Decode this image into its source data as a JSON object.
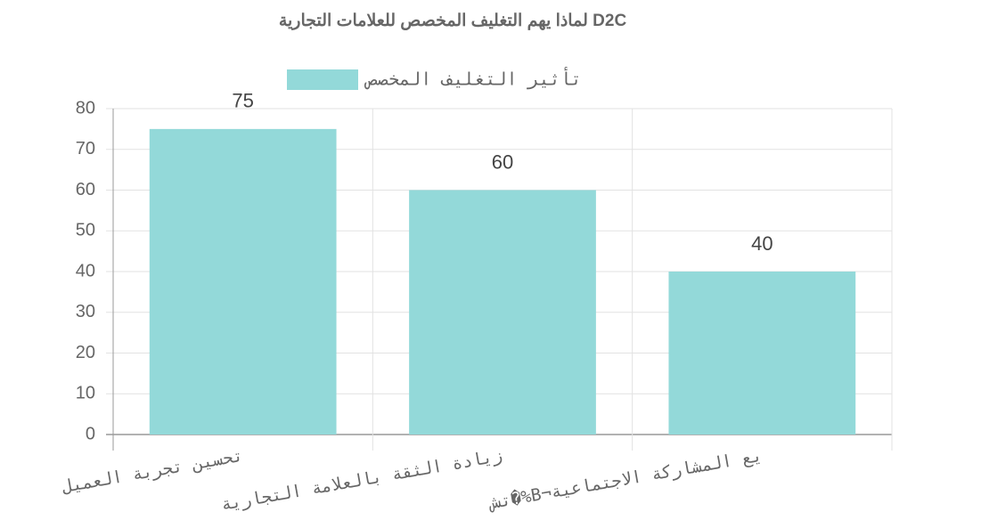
{
  "chart_data": {
    "type": "bar",
    "title": "لماذا يهم التغليف المخصص للعلامات التجارية D2C",
    "categories": [
      "تحسين تجربة العميل",
      "زيادة الثقة بالعلامة التجارية",
      "تش�%B¬يع المشاركة الاجتماعية"
    ],
    "series": [
      {
        "name": "تأثير التغليف المخصص",
        "color": "#93d9d9",
        "values": [
          75,
          60,
          40
        ]
      }
    ],
    "ylim": [
      0,
      80
    ],
    "yticks": [
      0,
      10,
      20,
      30,
      40,
      50,
      60,
      70,
      80
    ],
    "grid": true
  }
}
